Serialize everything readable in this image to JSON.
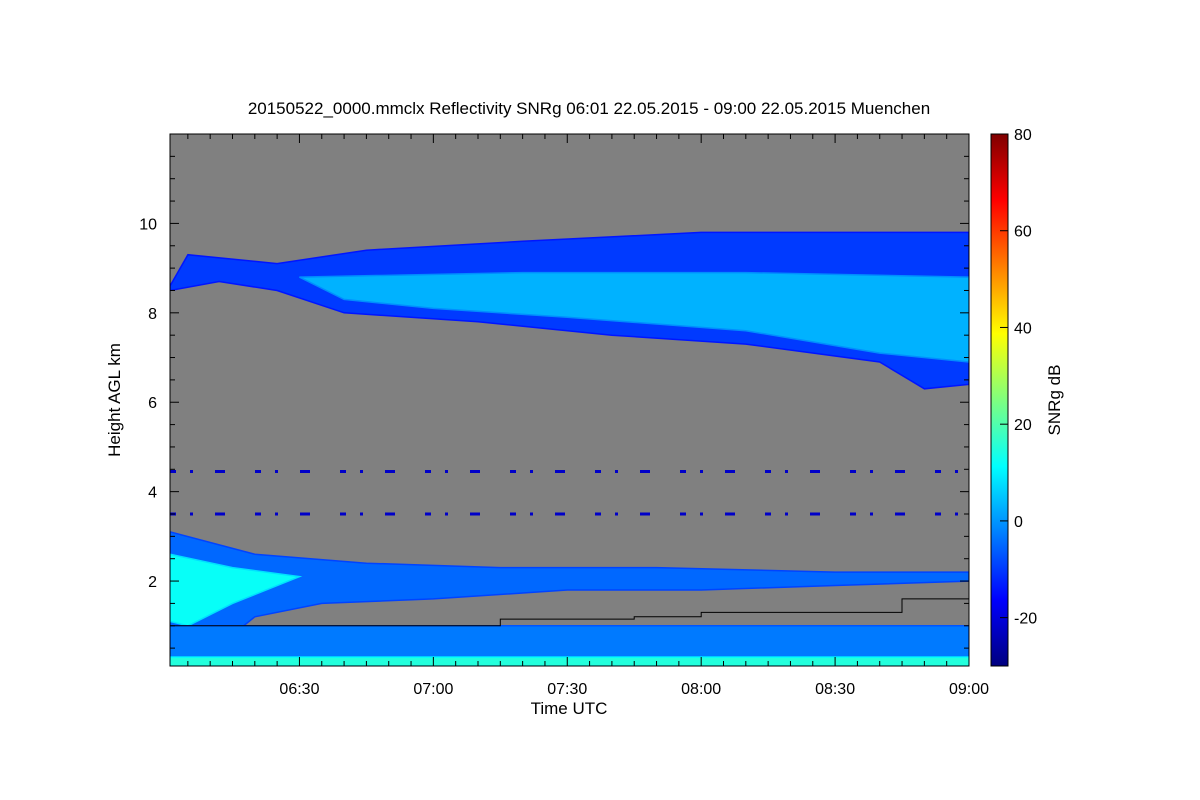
{
  "chart_data": {
    "type": "heatmap",
    "title": "20150522_0000.mmclx Reflectivity SNRg   06:01 22.05.2015 - 09:00 22.05.2015 Muenchen",
    "xlabel": "Time UTC",
    "ylabel": "Height AGL km",
    "colorbar_label": "SNRg dB",
    "x_ticks": [
      "06:30",
      "07:00",
      "07:30",
      "08:00",
      "08:30",
      "09:00"
    ],
    "x_tick_minutes": [
      30,
      60,
      90,
      120,
      150,
      180
    ],
    "xlim_minutes": [
      1,
      180
    ],
    "y_ticks": [
      2,
      4,
      6,
      8,
      10
    ],
    "ylim": [
      0.1,
      12.0
    ],
    "colorbar_ticks": [
      -20,
      0,
      20,
      40,
      60,
      80
    ],
    "colorbar_range": [
      -30,
      80
    ],
    "colormap": "jet",
    "background_color": "#808080",
    "colorbar_stops": [
      "#00007f",
      "#0000ff",
      "#007fff",
      "#00ffff",
      "#7fff7f",
      "#ffff00",
      "#ff7f00",
      "#ff0000",
      "#7f0000"
    ],
    "regions": [
      {
        "name": "upper cloud layer",
        "points": [
          [
            1,
            8.6
          ],
          [
            5,
            9.3
          ],
          [
            25,
            9.1
          ],
          [
            45,
            9.4
          ],
          [
            80,
            9.6
          ],
          [
            120,
            9.8
          ],
          [
            150,
            9.8
          ],
          [
            180,
            9.8
          ],
          [
            180,
            6.4
          ],
          [
            170,
            6.3
          ],
          [
            160,
            6.9
          ],
          [
            130,
            7.3
          ],
          [
            100,
            7.5
          ],
          [
            70,
            7.8
          ],
          [
            40,
            8.0
          ],
          [
            25,
            8.5
          ],
          [
            12,
            8.7
          ],
          [
            1,
            8.5
          ]
        ],
        "snr": -10
      },
      {
        "name": "upper cloud core",
        "points": [
          [
            30,
            8.8
          ],
          [
            80,
            8.9
          ],
          [
            130,
            8.9
          ],
          [
            180,
            8.8
          ],
          [
            180,
            6.9
          ],
          [
            160,
            7.1
          ],
          [
            130,
            7.6
          ],
          [
            90,
            7.9
          ],
          [
            60,
            8.1
          ],
          [
            40,
            8.3
          ]
        ],
        "snr": 3
      },
      {
        "name": "boundary layer",
        "points": [
          [
            1,
            3.1
          ],
          [
            20,
            2.6
          ],
          [
            45,
            2.4
          ],
          [
            75,
            2.3
          ],
          [
            110,
            2.3
          ],
          [
            150,
            2.2
          ],
          [
            180,
            2.2
          ],
          [
            180,
            2.0
          ],
          [
            150,
            1.9
          ],
          [
            120,
            1.8
          ],
          [
            90,
            1.8
          ],
          [
            60,
            1.6
          ],
          [
            35,
            1.5
          ],
          [
            20,
            1.2
          ],
          [
            10,
            0.4
          ],
          [
            1,
            0.3
          ]
        ],
        "snr": -5
      },
      {
        "name": "boundary layer core",
        "points": [
          [
            1,
            2.6
          ],
          [
            15,
            2.3
          ],
          [
            30,
            2.1
          ],
          [
            15,
            1.5
          ],
          [
            5,
            1.0
          ],
          [
            1,
            1.1
          ]
        ],
        "snr": 12
      },
      {
        "name": "surface clutter",
        "points": [
          [
            1,
            1.0
          ],
          [
            180,
            1.0
          ],
          [
            180,
            0.1
          ],
          [
            1,
            0.1
          ]
        ],
        "snr": -3
      },
      {
        "name": "surface layer",
        "points": [
          [
            1,
            0.3
          ],
          [
            180,
            0.3
          ],
          [
            180,
            0.1
          ],
          [
            1,
            0.1
          ]
        ],
        "snr": 15
      }
    ],
    "horizontal_artifacts_km": [
      4.45,
      3.5
    ],
    "reference_line": [
      [
        1,
        1.0
      ],
      [
        75,
        1.0
      ],
      [
        75,
        1.15
      ],
      [
        105,
        1.15
      ],
      [
        105,
        1.2
      ],
      [
        120,
        1.2
      ],
      [
        120,
        1.3
      ],
      [
        165,
        1.3
      ],
      [
        165,
        1.6
      ],
      [
        180,
        1.6
      ]
    ]
  }
}
